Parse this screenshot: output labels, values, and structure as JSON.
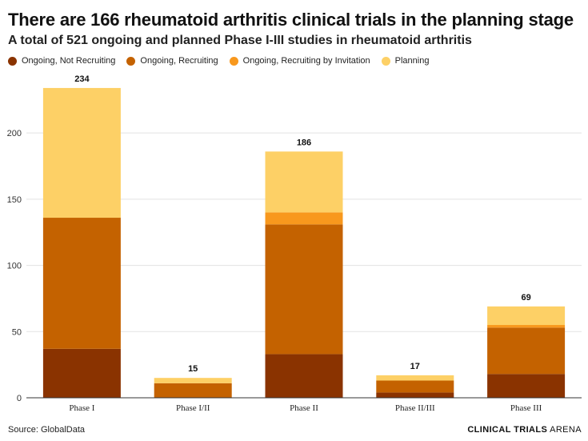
{
  "header": {
    "title": "There are 166 rheumatoid arthritis clinical trials in the planning stage",
    "subtitle": "A total of 521 ongoing and planned Phase I-III studies in rheumatoid arthritis"
  },
  "footer": {
    "source": "Source: GlobalData",
    "brand_bold": "CLINICAL TRIALS",
    "brand_thin": "ARENA"
  },
  "chart_data": {
    "type": "bar",
    "stacked": true,
    "categories": [
      "Phase I",
      "Phase I/II",
      "Phase II",
      "Phase II/III",
      "Phase III"
    ],
    "series": [
      {
        "name": "Ongoing, Not Recruiting",
        "color": "#8a3300",
        "values": [
          37,
          0,
          33,
          4,
          18
        ]
      },
      {
        "name": "Ongoing, Recruiting",
        "color": "#c46200",
        "values": [
          99,
          11,
          98,
          9,
          35
        ]
      },
      {
        "name": "Ongoing, Recruiting by Invitation",
        "color": "#f8981d",
        "values": [
          0,
          0,
          9,
          0,
          2
        ]
      },
      {
        "name": "Planning",
        "color": "#fdd066",
        "values": [
          98,
          4,
          46,
          4,
          14
        ]
      }
    ],
    "totals": [
      234,
      15,
      186,
      17,
      69
    ],
    "ylim": [
      0,
      240
    ],
    "yticks": [
      0,
      50,
      100,
      150,
      200
    ],
    "grid": true,
    "legend_position": "top-left"
  }
}
